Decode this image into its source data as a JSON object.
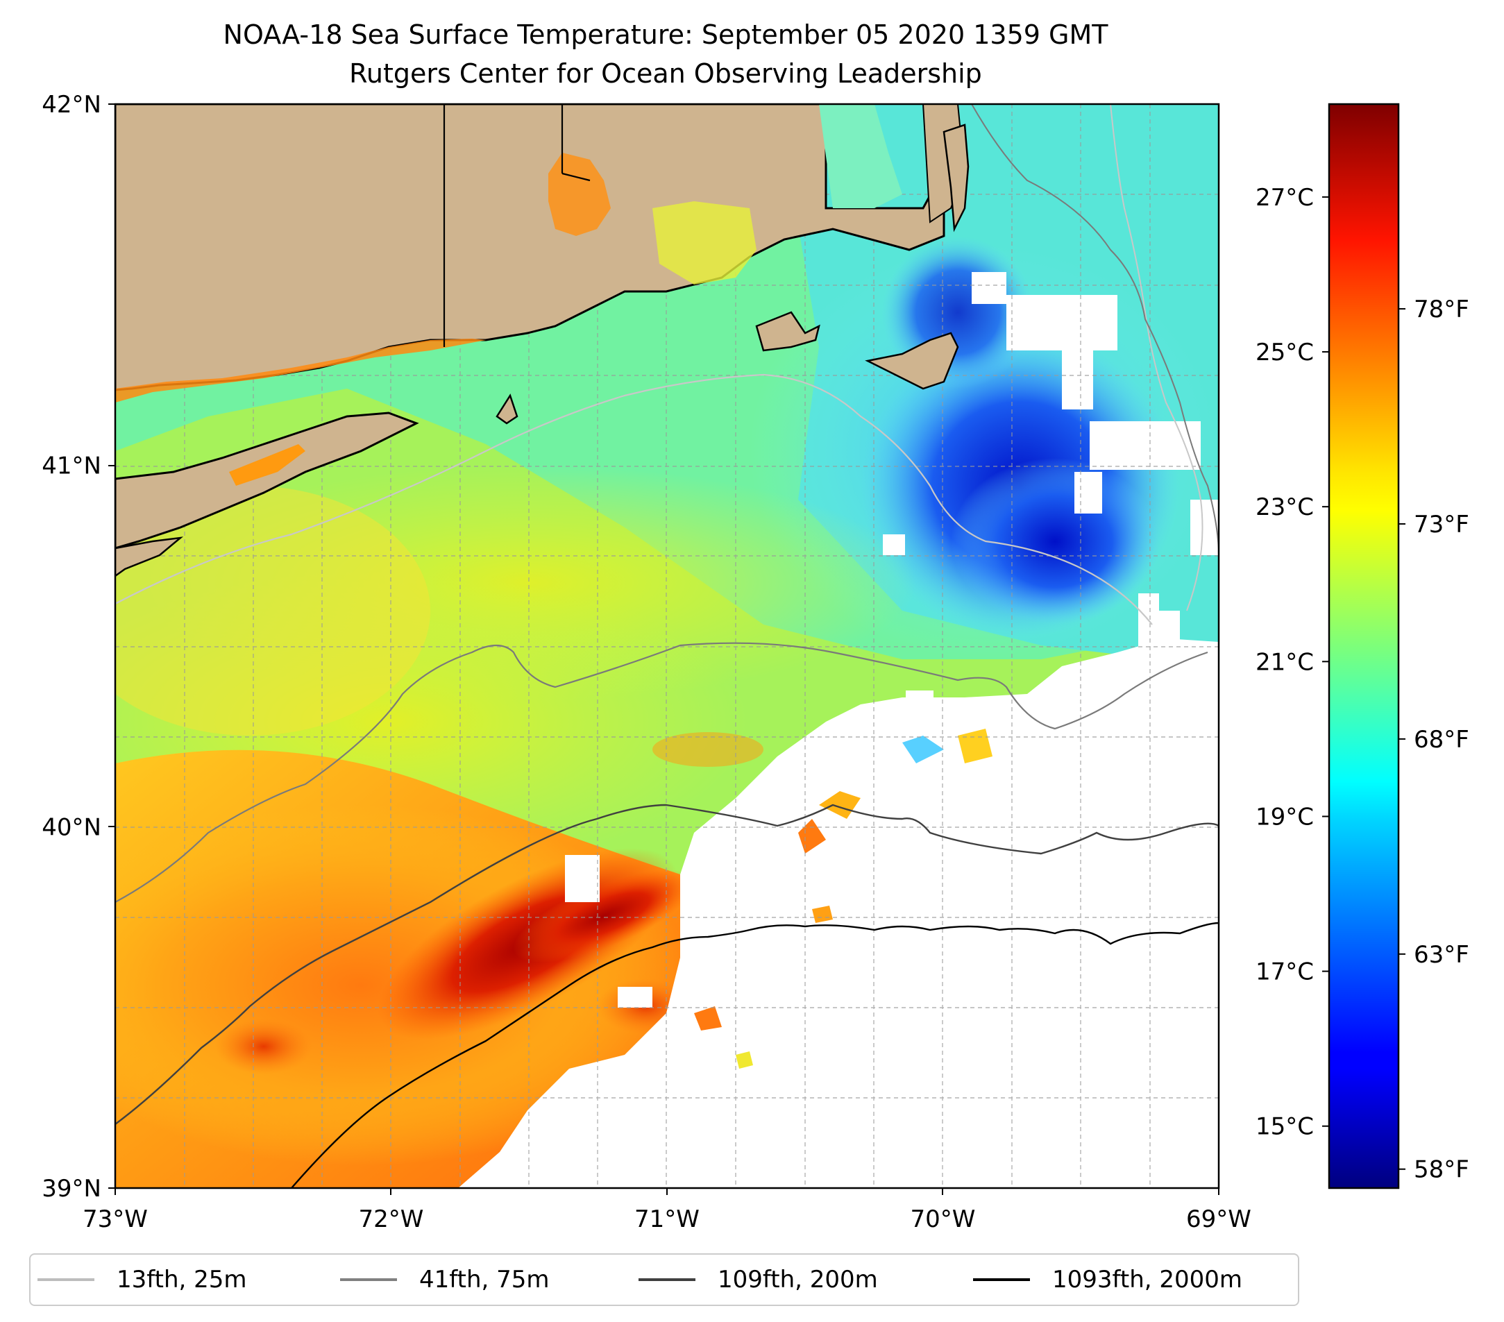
{
  "title": {
    "line1": "NOAA-18 Sea Surface Temperature: September 05 2020 1359 GMT",
    "line2": "Rutgers Center for Ocean Observing Leadership"
  },
  "map": {
    "lon_range": [
      -73,
      -69
    ],
    "lat_range": [
      39,
      42
    ],
    "lon_ticks": [
      {
        "value": -73,
        "label": "73°W"
      },
      {
        "value": -72,
        "label": "72°W"
      },
      {
        "value": -71,
        "label": "71°W"
      },
      {
        "value": -70,
        "label": "70°W"
      },
      {
        "value": -69,
        "label": "69°W"
      }
    ],
    "lat_ticks": [
      {
        "value": 42,
        "label": "42°N"
      },
      {
        "value": 41,
        "label": "41°N"
      },
      {
        "value": 40,
        "label": "40°N"
      },
      {
        "value": 39,
        "label": "39°N"
      }
    ],
    "colors": {
      "land": "#cfb48f",
      "coast": "#000000",
      "no_data": "#ffffff",
      "gridline": "#b0b0b0"
    }
  },
  "colorbar": {
    "colormap": "jet",
    "range_c": [
      14.2,
      28.2
    ],
    "celsius_ticks": [
      {
        "value": 27,
        "label": "27°C"
      },
      {
        "value": 25,
        "label": "25°C"
      },
      {
        "value": 23,
        "label": "23°C"
      },
      {
        "value": 21,
        "label": "21°C"
      },
      {
        "value": 19,
        "label": "19°C"
      },
      {
        "value": 17,
        "label": "17°C"
      },
      {
        "value": 15,
        "label": "15°C"
      }
    ],
    "fahrenheit_ticks": [
      {
        "value": 78,
        "label": "78°F"
      },
      {
        "value": 73,
        "label": "73°F"
      },
      {
        "value": 68,
        "label": "68°F"
      },
      {
        "value": 63,
        "label": "63°F"
      },
      {
        "value": 58,
        "label": "58°F"
      }
    ]
  },
  "legend": {
    "items": [
      {
        "label": "13fth, 25m",
        "color": "#bdbdbd"
      },
      {
        "label": "41fth, 75m",
        "color": "#808080"
      },
      {
        "label": "109fth, 200m",
        "color": "#404040"
      },
      {
        "label": "1093fth, 2000m",
        "color": "#000000"
      }
    ]
  }
}
